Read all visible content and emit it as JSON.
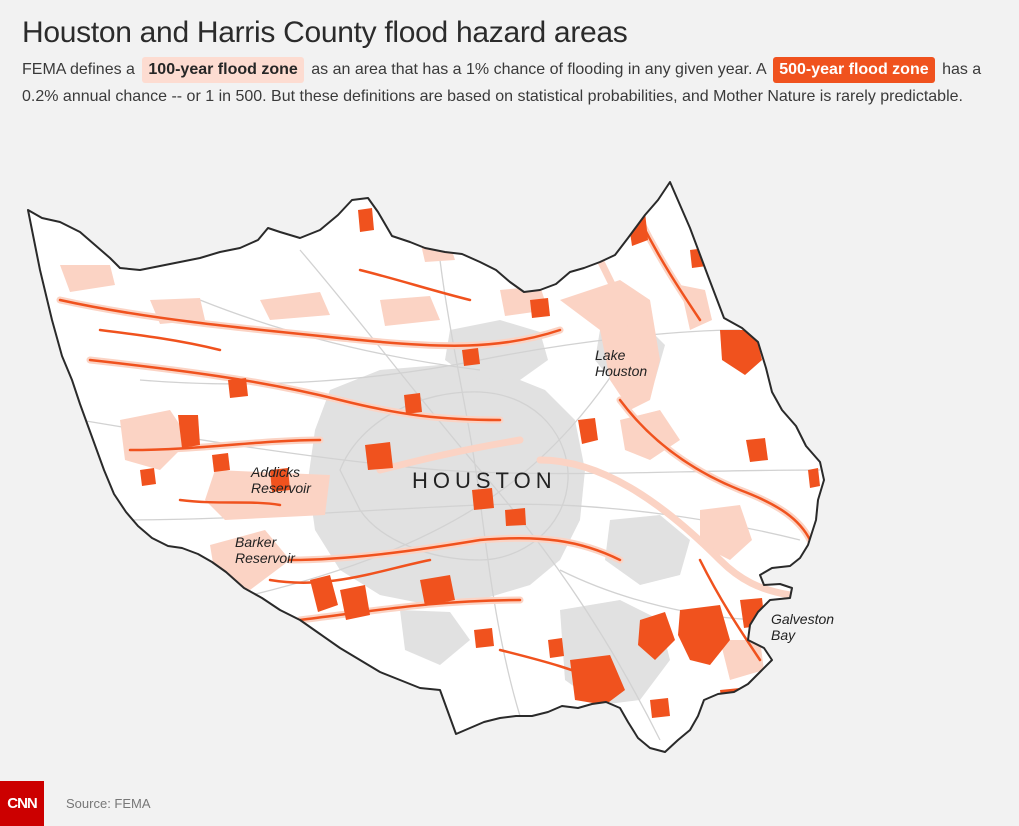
{
  "title": "Houston and Harris County flood hazard areas",
  "description": {
    "part1": "FEMA defines a",
    "chip_100": "100-year flood zone",
    "part2": "as an area that has a 1% chance of flooding in any given year. A",
    "chip_500": "500-year flood zone",
    "part3": "has a 0.2% annual chance -- or 1 in 500. But these definitions are based on statistical probabilities, and Mother Nature is rarely predictable."
  },
  "legend_colors": {
    "flood_100_year": "#fbd3c4",
    "flood_500_year": "#f0521e",
    "urban_area": "#dedede",
    "county_fill": "#ffffff"
  },
  "map_labels": {
    "lake_houston": [
      "Lake",
      "Houston"
    ],
    "addicks": [
      "Addicks",
      "Reservoir"
    ],
    "barker": [
      "Barker",
      "Reservoir"
    ],
    "city": "HOUSTON",
    "galveston": [
      "Galveston",
      "Bay"
    ]
  },
  "footer": {
    "logo_text": "CNN",
    "source": "Source: FEMA"
  }
}
